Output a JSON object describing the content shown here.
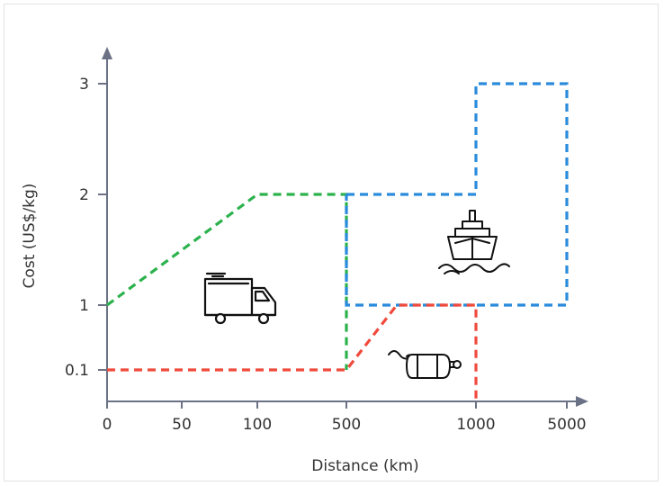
{
  "chart_data": {
    "type": "line",
    "xlabel": "Distance (km)",
    "ylabel": "Cost (US$/kg)",
    "x_ticks": [
      "0",
      "50",
      "100",
      "500",
      "1000",
      "5000"
    ],
    "y_ticks": [
      "0.1",
      "1",
      "2",
      "3"
    ],
    "colors": {
      "truck": "#2bb24c",
      "ship": "#2a8bdc",
      "pipeline": "#f04a3c",
      "axis": "#6b7285"
    },
    "icons": {
      "truck": "truck-icon",
      "ship": "ship-icon",
      "pipeline": "pipeline-icon"
    },
    "series": [
      {
        "color": "#2bb24c",
        "icon": "truck-icon",
        "points": [
          [
            "0",
            1
          ],
          [
            "100",
            2
          ],
          [
            "500",
            2
          ],
          [
            "500",
            0.1
          ]
        ]
      },
      {
        "color": "#2a8bdc",
        "icon": "ship-icon",
        "points": [
          [
            "500",
            2
          ],
          [
            "1000",
            2
          ],
          [
            "1000",
            3
          ],
          [
            "5000",
            3
          ],
          [
            "5000",
            1
          ],
          [
            "500",
            1
          ],
          [
            "500",
            2
          ]
        ]
      },
      {
        "color": "#f04a3c",
        "icon": "pipeline-icon",
        "points": [
          [
            "0",
            0.1
          ],
          [
            "500",
            0.1
          ],
          [
            "700",
            1
          ],
          [
            "1000",
            1
          ],
          [
            "1000",
            0
          ]
        ]
      }
    ]
  }
}
